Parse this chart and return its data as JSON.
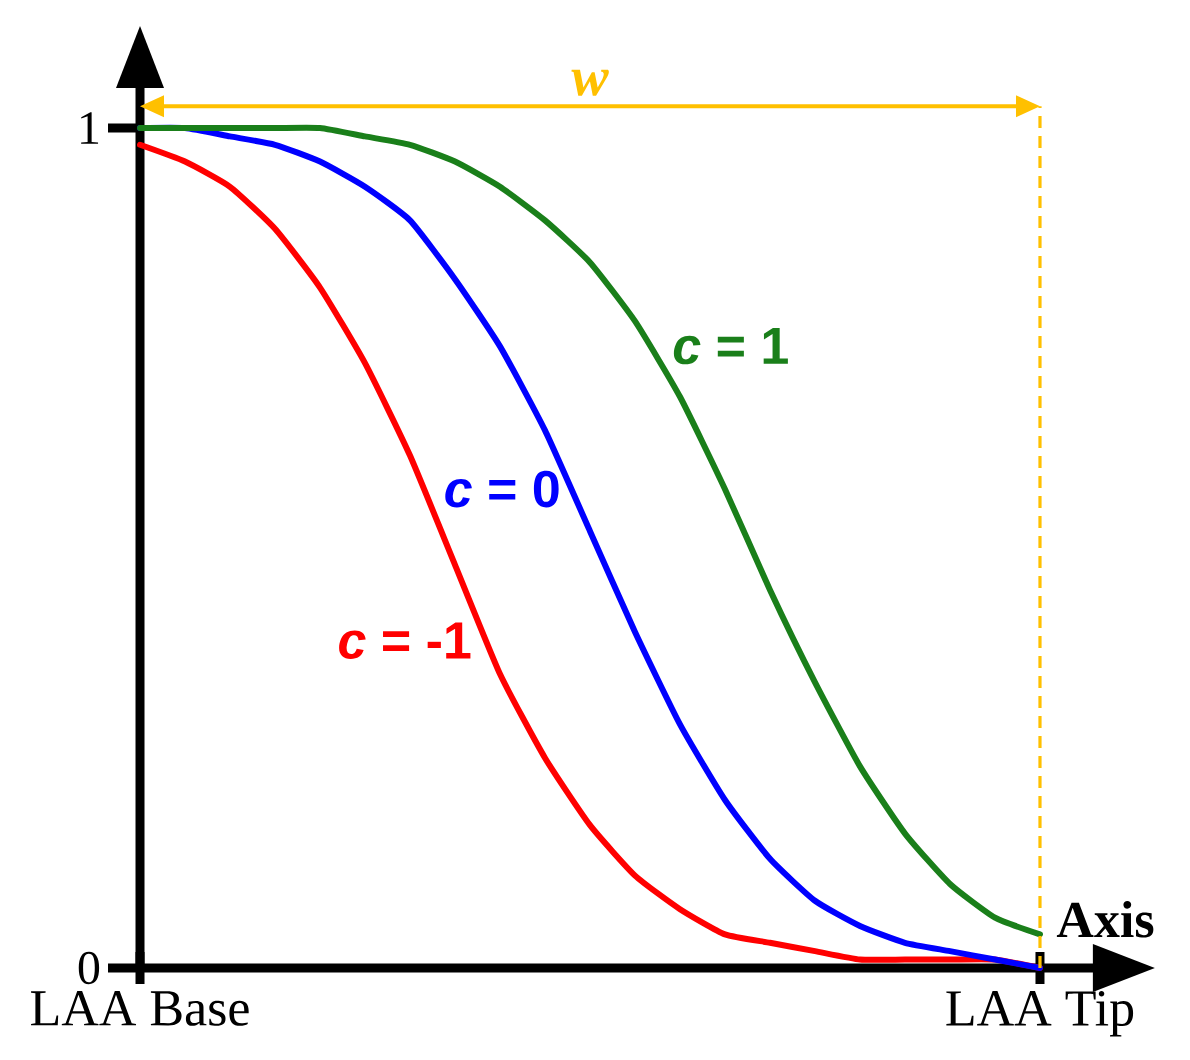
{
  "chart_data": {
    "type": "line",
    "xlabel": "Axis",
    "categories": [
      "LAA Base",
      null,
      null,
      null,
      null,
      null,
      null,
      null,
      null,
      null,
      null,
      null,
      null,
      null,
      null,
      null,
      null,
      null,
      null,
      null,
      "LAA Tip"
    ],
    "ylim": [
      0,
      1.05
    ],
    "yticks": [
      0,
      1
    ],
    "series": [
      {
        "name": "*c* = -1",
        "color": "#ff0000",
        "values": [
          0.98,
          0.96,
          0.93,
          0.88,
          0.81,
          0.72,
          0.61,
          0.48,
          0.35,
          0.25,
          0.17,
          0.11,
          0.07,
          0.04,
          0.03,
          0.02,
          0.01,
          0.01,
          0.01,
          0.01,
          0
        ]
      },
      {
        "name": "*c* = 0",
        "color": "#0000ff",
        "values": [
          1,
          1,
          0.99,
          0.98,
          0.96,
          0.93,
          0.89,
          0.82,
          0.74,
          0.64,
          0.52,
          0.4,
          0.29,
          0.2,
          0.13,
          0.08,
          0.05,
          0.03,
          0.02,
          0.01,
          0
        ]
      },
      {
        "name": "*c* = 1",
        "color": "#1a7f1a",
        "values": [
          1,
          1,
          1,
          1,
          1,
          0.99,
          0.98,
          0.96,
          0.93,
          0.89,
          0.84,
          0.77,
          0.68,
          0.57,
          0.45,
          0.34,
          0.24,
          0.16,
          0.1,
          0.06,
          0.04
        ]
      }
    ],
    "ref_lines": [
      {
        "axis": "x",
        "value": "LAA Tip",
        "color": "#ffc000",
        "line_style": "dashed"
      }
    ],
    "annotations": [
      "w"
    ]
  }
}
